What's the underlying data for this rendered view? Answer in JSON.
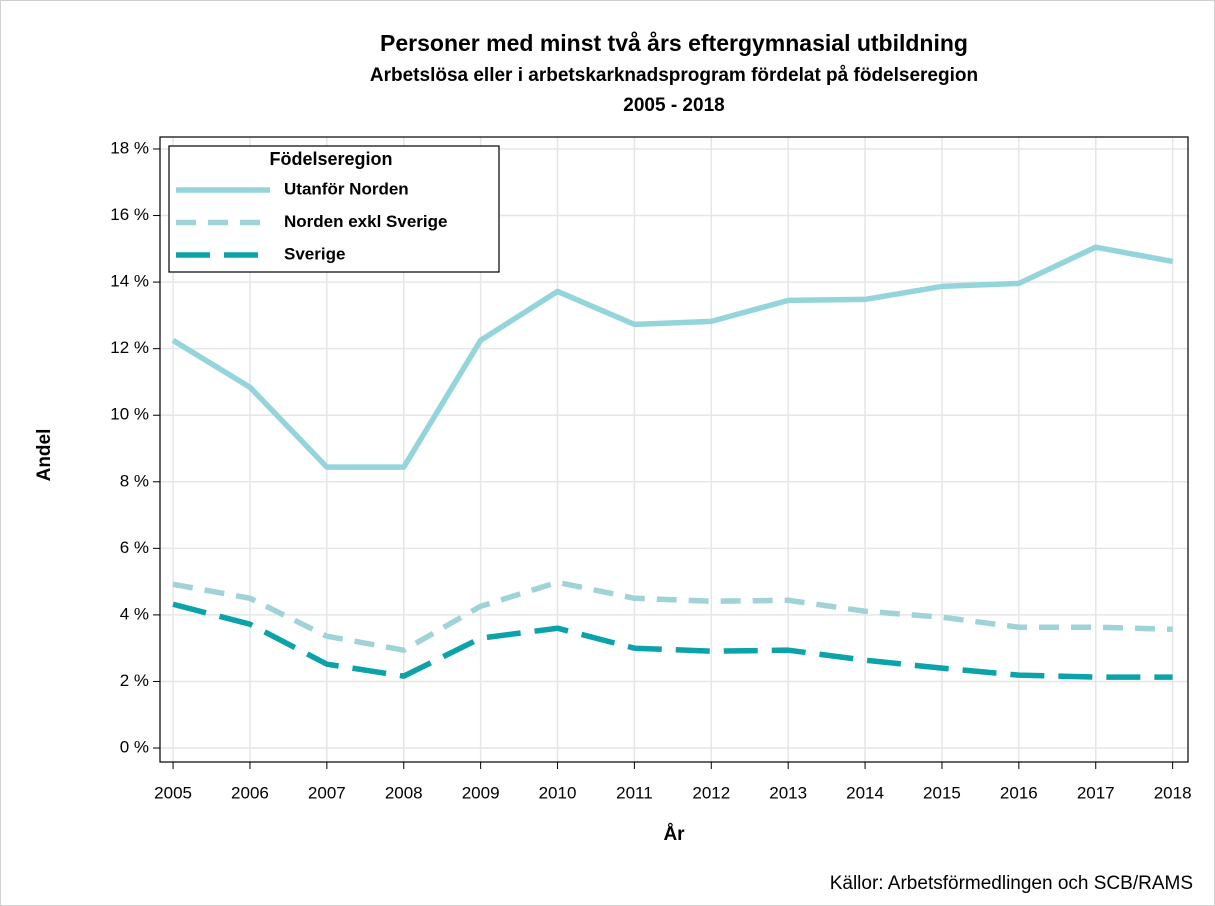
{
  "chart_data": {
    "type": "line",
    "title": "Personer med minst två års eftergymnasial utbildning",
    "subtitle": "Arbetslösa eller i arbetskarknadsprogram fördelat på födelseregion",
    "subtitle2": "2005 - 2018",
    "x_label": "År",
    "y_label": "Andel",
    "source": "Källor: Arbetsförmedlingen och SCB/RAMS",
    "legend_title": "Födelseregion",
    "legend": "upper left",
    "grid": true,
    "x": [
      2005,
      2006,
      2007,
      2008,
      2009,
      2010,
      2011,
      2012,
      2013,
      2014,
      2015,
      2016,
      2017,
      2018
    ],
    "xlim": [
      2004.83,
      2018.2
    ],
    "xticks": [
      2005,
      2006,
      2007,
      2008,
      2009,
      2010,
      2011,
      2012,
      2013,
      2014,
      2015,
      2016,
      2017,
      2018
    ],
    "ylim": [
      -0.42,
      18.36
    ],
    "yticks": [
      {
        "value": 0,
        "label": "0 %"
      },
      {
        "value": 2,
        "label": "2 %"
      },
      {
        "value": 4,
        "label": "4 %"
      },
      {
        "value": 6,
        "label": "6 %"
      },
      {
        "value": 8,
        "label": "8 %"
      },
      {
        "value": 10,
        "label": "10 %"
      },
      {
        "value": 12,
        "label": "12 %"
      },
      {
        "value": 14,
        "label": "14 %"
      },
      {
        "value": 16,
        "label": "16 %"
      },
      {
        "value": 18,
        "label": "18 %"
      }
    ],
    "series": [
      {
        "name": "Utanför Norden",
        "color": "#93d5da",
        "dash": "solid",
        "values": [
          12.25,
          10.84,
          8.44,
          8.44,
          12.25,
          13.72,
          12.73,
          12.82,
          13.45,
          13.48,
          13.87,
          13.96,
          15.05,
          14.62
        ]
      },
      {
        "name": "Norden exkl Sverige",
        "color": "#9fd3d8",
        "dash": "dash",
        "values": [
          4.92,
          4.5,
          3.36,
          2.94,
          4.26,
          4.98,
          4.5,
          4.41,
          4.44,
          4.11,
          3.93,
          3.63,
          3.63,
          3.57
        ]
      },
      {
        "name": "Sverige",
        "color": "#0ca2aa",
        "dash": "longdash",
        "values": [
          4.32,
          3.72,
          2.52,
          2.16,
          3.3,
          3.6,
          3.0,
          2.91,
          2.94,
          2.64,
          2.4,
          2.19,
          2.13,
          2.13
        ]
      }
    ]
  }
}
